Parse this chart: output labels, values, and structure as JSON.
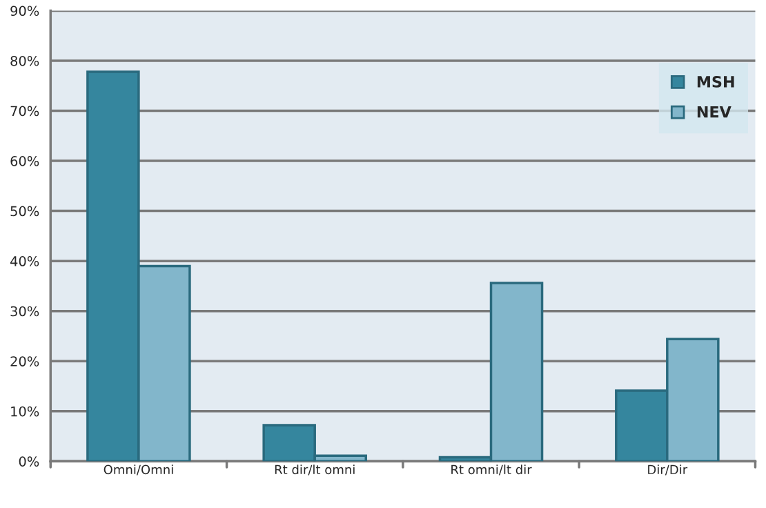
{
  "chart_data": {
    "type": "bar",
    "categories": [
      "Omni/Omni",
      "Rt dir/lt omni",
      "Rt omni/lt dir",
      "Dir/Dir"
    ],
    "series": [
      {
        "name": "MSH",
        "color": "#35869e",
        "values": [
          77.8,
          7.2,
          0.8,
          14.1
        ]
      },
      {
        "name": "NEV",
        "color": "#82b6cb",
        "values": [
          39.0,
          1.1,
          35.6,
          24.4
        ]
      }
    ],
    "ylim": [
      0,
      90
    ],
    "yticks": [
      {
        "value": 0,
        "label": "0%"
      },
      {
        "value": 10,
        "label": "10%"
      },
      {
        "value": 20,
        "label": "20%"
      },
      {
        "value": 30,
        "label": "30%"
      },
      {
        "value": 40,
        "label": "40%"
      },
      {
        "value": 50,
        "label": "50%"
      },
      {
        "value": 60,
        "label": "60%"
      },
      {
        "value": 70,
        "label": "70%"
      },
      {
        "value": 80,
        "label": "80%"
      },
      {
        "value": 90,
        "label": "90%"
      }
    ],
    "grid": "y",
    "legend": "top right"
  }
}
